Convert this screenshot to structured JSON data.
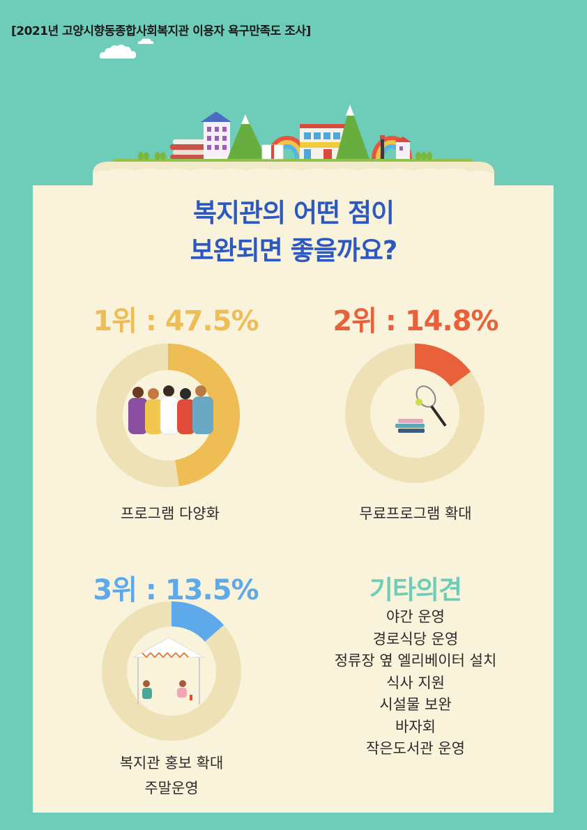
{
  "header": {
    "title": "[2021년 고양시향동종합사회복지관 이용자 욕구만족도 조사]"
  },
  "main": {
    "title_line1": "복지관의 어떤 점이",
    "title_line2": "보완되면 좋을까요?"
  },
  "results": [
    {
      "rank_label": "1위 : 47.5%",
      "percent": 47.5,
      "color": "#efbd56",
      "category": "프로그램 다양화",
      "icon": "people-group-icon"
    },
    {
      "rank_label": "2위 : 14.8%",
      "percent": 14.8,
      "color": "#e8613a",
      "category": "무료프로그램 확대",
      "icon": "tennis-books-icon"
    },
    {
      "rank_label": "3위 : 13.5%",
      "percent": 13.5,
      "color": "#5da9e9",
      "category_line1": "복지관 홍보 확대",
      "category_line2": "주말운영",
      "icon": "tent-picnic-icon"
    }
  ],
  "others": {
    "title": "기타의견",
    "items": [
      "야간 운영",
      "경로식당 운영",
      "정류장 옆 엘리베이터 설치",
      "식사 지원",
      "시설물 보완",
      "바자회",
      "작은도서관 운영"
    ]
  },
  "colors": {
    "background": "#6dcdb8",
    "panel": "#f9f3dc",
    "ring_track": "#ede1b5",
    "title_blue": "#2c58bf"
  }
}
